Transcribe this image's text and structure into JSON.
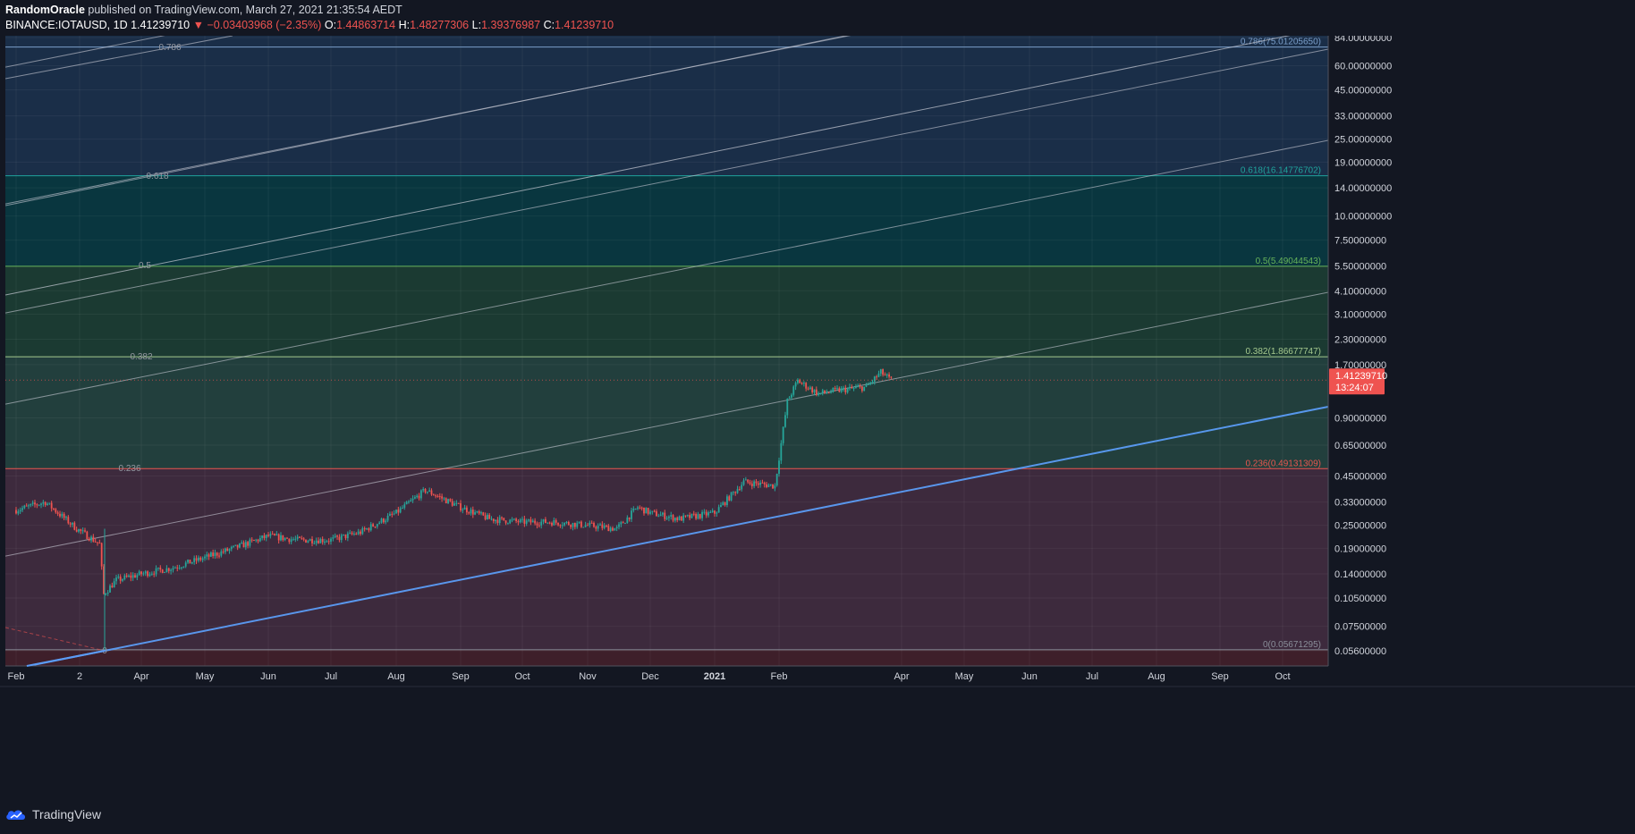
{
  "header": {
    "author": "RandomOracle",
    "published": "published on TradingView.com, March 27, 2021 21:35:54 AEDT",
    "symbol": "BINANCE:IOTAUSD, 1D",
    "last": "1.41239710",
    "arrow": "▼",
    "change": "−0.03403968 (−2.35%)",
    "o_label": "O:",
    "o": "1.44863714",
    "h_label": "H:",
    "h": "1.48277306",
    "l_label": "L:",
    "l": "1.39376987",
    "c_label": "C:",
    "c": "1.41239710"
  },
  "footer": {
    "brand": "TradingView"
  },
  "colors": {
    "bg": "#131722",
    "up": "#26a69a",
    "down": "#ef5350",
    "grid": "#2a2e39",
    "text": "#d1d4dc",
    "trend": "#5b9cf6"
  },
  "chart_data": {
    "type": "candlestick",
    "symbol": "BINANCE:IOTAUSD",
    "interval": "1D",
    "yscale": "log",
    "y_ticks": [
      "84.00000000",
      "60.00000000",
      "45.00000000",
      "33.00000000",
      "25.00000000",
      "19.00000000",
      "14.00000000",
      "10.00000000",
      "7.50000000",
      "5.50000000",
      "4.10000000",
      "3.10000000",
      "2.30000000",
      "1.70000000",
      "0.90000000",
      "0.65000000",
      "0.45000000",
      "0.33000000",
      "0.25000000",
      "0.19000000",
      "0.14000000",
      "0.10500000",
      "0.07500000",
      "0.05600000"
    ],
    "x_ticks": [
      "Feb",
      "2",
      "Apr",
      "May",
      "Jun",
      "Jul",
      "Aug",
      "Sep",
      "Oct",
      "Nov",
      "Dec",
      "2021",
      "Feb",
      "Apr",
      "May",
      "Jun",
      "Jul",
      "Aug",
      "Sep",
      "Oct"
    ],
    "price_label": "1.41239710",
    "countdown": "13:24:07",
    "fib_levels": [
      {
        "ratio": "0.786",
        "label": "0.786(75.01205650)",
        "value": 75.0120565,
        "color": "#7a9ec9"
      },
      {
        "ratio": "0.618",
        "label": "0.618(16.14776702)",
        "value": 16.14776702,
        "color": "#1fa39c"
      },
      {
        "ratio": "0.5",
        "label": "0.5(5.49044543)",
        "value": 5.49044543,
        "color": "#67b45a"
      },
      {
        "ratio": "0.382",
        "label": "0.382(1.86677747)",
        "value": 1.86677747,
        "color": "#a5c98e"
      },
      {
        "ratio": "0.236",
        "label": "0.236(0.49131309)",
        "value": 0.49131309,
        "color": "#e8564f"
      },
      {
        "ratio": "0",
        "label": "0(0.05671295)",
        "value": 0.05671295,
        "color": "#8a8e99"
      }
    ],
    "zones": [
      "#1a2e48",
      "#09363f",
      "#1b3a32",
      "#223f3d",
      "#3d2a3d",
      "#3e1f2a"
    ],
    "trend_channel_anchor": {
      "x_index": 0,
      "price": 0.05671295
    },
    "series": [
      {
        "name": "IOTAUSD",
        "x": [
          "2020-02-01",
          "2020-02-15",
          "2020-03-01",
          "2020-03-12",
          "2020-03-14",
          "2020-03-20",
          "2020-04-01",
          "2020-04-15",
          "2020-05-01",
          "2020-05-15",
          "2020-06-01",
          "2020-06-15",
          "2020-07-01",
          "2020-07-15",
          "2020-08-01",
          "2020-08-15",
          "2020-09-01",
          "2020-09-15",
          "2020-10-01",
          "2020-10-15",
          "2020-11-01",
          "2020-11-15",
          "2020-11-25",
          "2020-12-01",
          "2020-12-15",
          "2021-01-01",
          "2021-01-15",
          "2021-01-30",
          "2021-02-05",
          "2021-02-10",
          "2021-02-20",
          "2021-03-01",
          "2021-03-15",
          "2021-03-22",
          "2021-03-27"
        ],
        "close": [
          0.3,
          0.33,
          0.24,
          0.2,
          0.11,
          0.13,
          0.14,
          0.15,
          0.17,
          0.19,
          0.22,
          0.21,
          0.21,
          0.23,
          0.29,
          0.38,
          0.31,
          0.27,
          0.26,
          0.26,
          0.25,
          0.24,
          0.31,
          0.29,
          0.27,
          0.29,
          0.42,
          0.4,
          1.1,
          1.4,
          1.2,
          1.25,
          1.3,
          1.55,
          1.41
        ]
      }
    ]
  }
}
